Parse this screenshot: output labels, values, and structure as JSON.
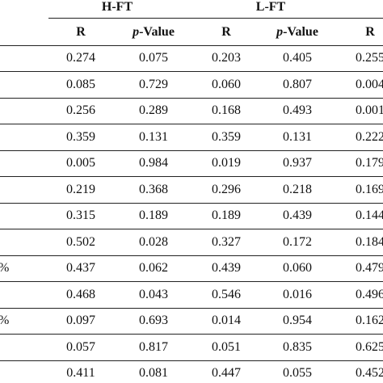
{
  "table": {
    "groups": [
      "H-FT",
      "L-FT"
    ],
    "columns": [
      "R",
      "p-Value",
      "R",
      "p-Value",
      "R"
    ],
    "rows": [
      [
        null,
        "0.274",
        "0.075",
        "0.203",
        "0.405",
        "0.255"
      ],
      [
        null,
        "0.085",
        "0.729",
        "0.060",
        "0.807",
        "0.004"
      ],
      [
        null,
        "0.256",
        "0.289",
        "0.168",
        "0.493",
        "0.001"
      ],
      [
        null,
        "0.359",
        "0.131",
        "0.359",
        "0.131",
        "0.222"
      ],
      [
        null,
        "0.005",
        "0.984",
        "0.019",
        "0.937",
        "0.179"
      ],
      [
        null,
        "0.219",
        "0.368",
        "0.296",
        "0.218",
        "0.169"
      ],
      [
        null,
        "0.315",
        "0.189",
        "0.189",
        "0.439",
        "0.144"
      ],
      [
        null,
        "0.502",
        "0.028",
        "0.327",
        "0.172",
        "0.184"
      ],
      [
        "%",
        "0.437",
        "0.062",
        "0.439",
        "0.060",
        "0.479"
      ],
      [
        null,
        "0.468",
        "0.043",
        "0.546",
        "0.016",
        "0.496"
      ],
      [
        "%",
        "0.097",
        "0.693",
        "0.014",
        "0.954",
        "0.162"
      ],
      [
        null,
        "0.057",
        "0.817",
        "0.051",
        "0.835",
        "0.625"
      ],
      [
        null,
        "0.411",
        "0.081",
        "0.447",
        "0.055",
        "0.452"
      ]
    ]
  }
}
